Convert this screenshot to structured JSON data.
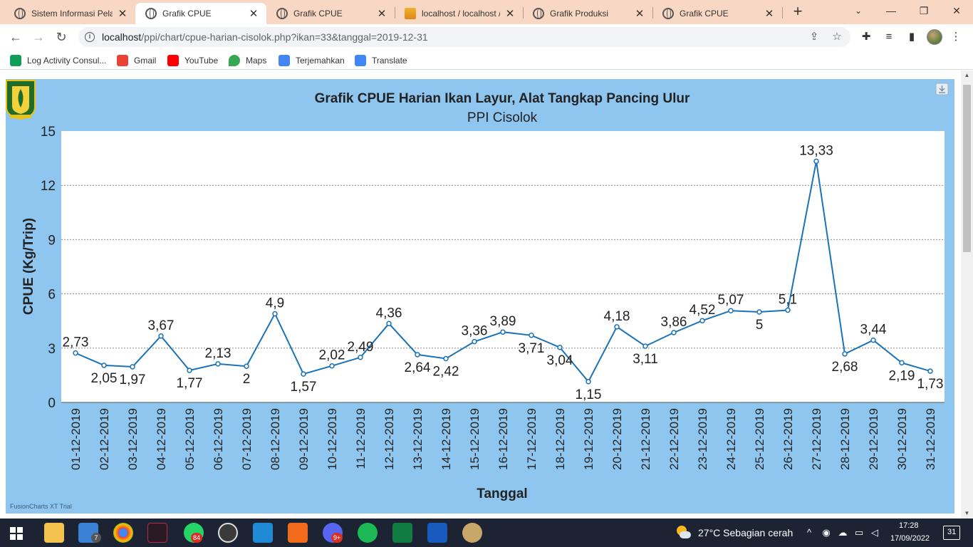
{
  "browser": {
    "tabs": [
      {
        "title": "Sistem Informasi Pelab",
        "close": "✕",
        "icon": "globe-icon"
      },
      {
        "title": "Grafik CPUE",
        "close": "✕",
        "icon": "globe-icon"
      },
      {
        "title": "Grafik CPUE",
        "close": "✕",
        "icon": "globe-icon"
      },
      {
        "title": "localhost / localhost /",
        "close": "✕",
        "icon": "phpmyadmin-icon"
      },
      {
        "title": "Grafik Produksi",
        "close": "✕",
        "icon": "globe-icon"
      },
      {
        "title": "Grafik CPUE",
        "close": "✕",
        "icon": "globe-icon"
      }
    ],
    "active_tab": 1,
    "new_tab_glyph": "+",
    "url_host": "localhost",
    "url_path": "/ppi/chart/cpue-harian-cisolok.php?ikan=33&tanggal=2019-12-31",
    "bookmarks": [
      {
        "label": "Log Activity Consul...",
        "icon": "sheets-icon",
        "color": "#0f9d58"
      },
      {
        "label": "Gmail",
        "icon": "gmail-icon",
        "color": "#ea4335"
      },
      {
        "label": "YouTube",
        "icon": "youtube-icon",
        "color": "#ff0000"
      },
      {
        "label": "Maps",
        "icon": "maps-icon",
        "color": "#34a853"
      },
      {
        "label": "Terjemahkan",
        "icon": "translate-icon",
        "color": "#4285f4"
      },
      {
        "label": "Translate",
        "icon": "translate-icon",
        "color": "#4285f4"
      }
    ]
  },
  "chart_data": {
    "type": "line",
    "title": "Grafik CPUE Harian Ikan Layur, Alat Tangkap Pancing Ulur",
    "subtitle": "PPI Cisolok",
    "xlabel": "Tanggal",
    "ylabel": "CPUE (Kg/Trip)",
    "ylim": [
      0,
      15
    ],
    "yticks": [
      0,
      3,
      6,
      9,
      12,
      15
    ],
    "grid": true,
    "categories": [
      "01-12-2019",
      "02-12-2019",
      "03-12-2019",
      "04-12-2019",
      "05-12-2019",
      "06-12-2019",
      "07-12-2019",
      "08-12-2019",
      "09-12-2019",
      "10-12-2019",
      "11-12-2019",
      "12-12-2019",
      "13-12-2019",
      "14-12-2019",
      "15-12-2019",
      "16-12-2019",
      "17-12-2019",
      "18-12-2019",
      "19-12-2019",
      "20-12-2019",
      "21-12-2019",
      "22-12-2019",
      "23-12-2019",
      "24-12-2019",
      "25-12-2019",
      "26-12-2019",
      "27-12-2019",
      "28-12-2019",
      "29-12-2019",
      "30-12-2019",
      "31-12-2019"
    ],
    "values": [
      2.73,
      2.05,
      1.97,
      3.67,
      1.77,
      2.13,
      2.0,
      4.9,
      1.57,
      2.02,
      2.49,
      4.36,
      2.64,
      2.42,
      3.36,
      3.89,
      3.71,
      3.04,
      1.15,
      4.18,
      3.11,
      3.86,
      4.52,
      5.07,
      5.0,
      5.1,
      13.33,
      2.68,
      3.44,
      2.19,
      1.73
    ],
    "value_labels": [
      "2,73",
      "2,05",
      "1,97",
      "3,67",
      "1,77",
      "2,13",
      "2",
      "4,9",
      "1,57",
      "2,02",
      "2,49",
      "4,36",
      "2,64",
      "2,42",
      "3,36",
      "3,89",
      "3,71",
      "3,04",
      "1,15",
      "4,18",
      "3,11",
      "3,86",
      "4,52",
      "5,07",
      "5",
      "5,1",
      "13,33",
      "2,68",
      "3,44",
      "2,19",
      "1,73"
    ],
    "label_position": [
      "above",
      "below",
      "below",
      "above",
      "below",
      "above",
      "below",
      "above",
      "below",
      "above",
      "above",
      "above",
      "below",
      "below",
      "above",
      "above",
      "below",
      "below",
      "below",
      "above",
      "below",
      "above",
      "above",
      "above",
      "below",
      "above",
      "above",
      "below",
      "above",
      "below",
      "below"
    ],
    "line_color": "#1a73b8",
    "background_color": "#8ec6f0",
    "watermark": "FusionCharts XT Trial"
  },
  "taskbar": {
    "badges": {
      "mail": "7",
      "whatsapp": "84",
      "discord": "9+"
    },
    "weather": "27°C  Sebagian cerah",
    "time": "17:28",
    "date": "17/09/2022",
    "notifications": "31"
  }
}
